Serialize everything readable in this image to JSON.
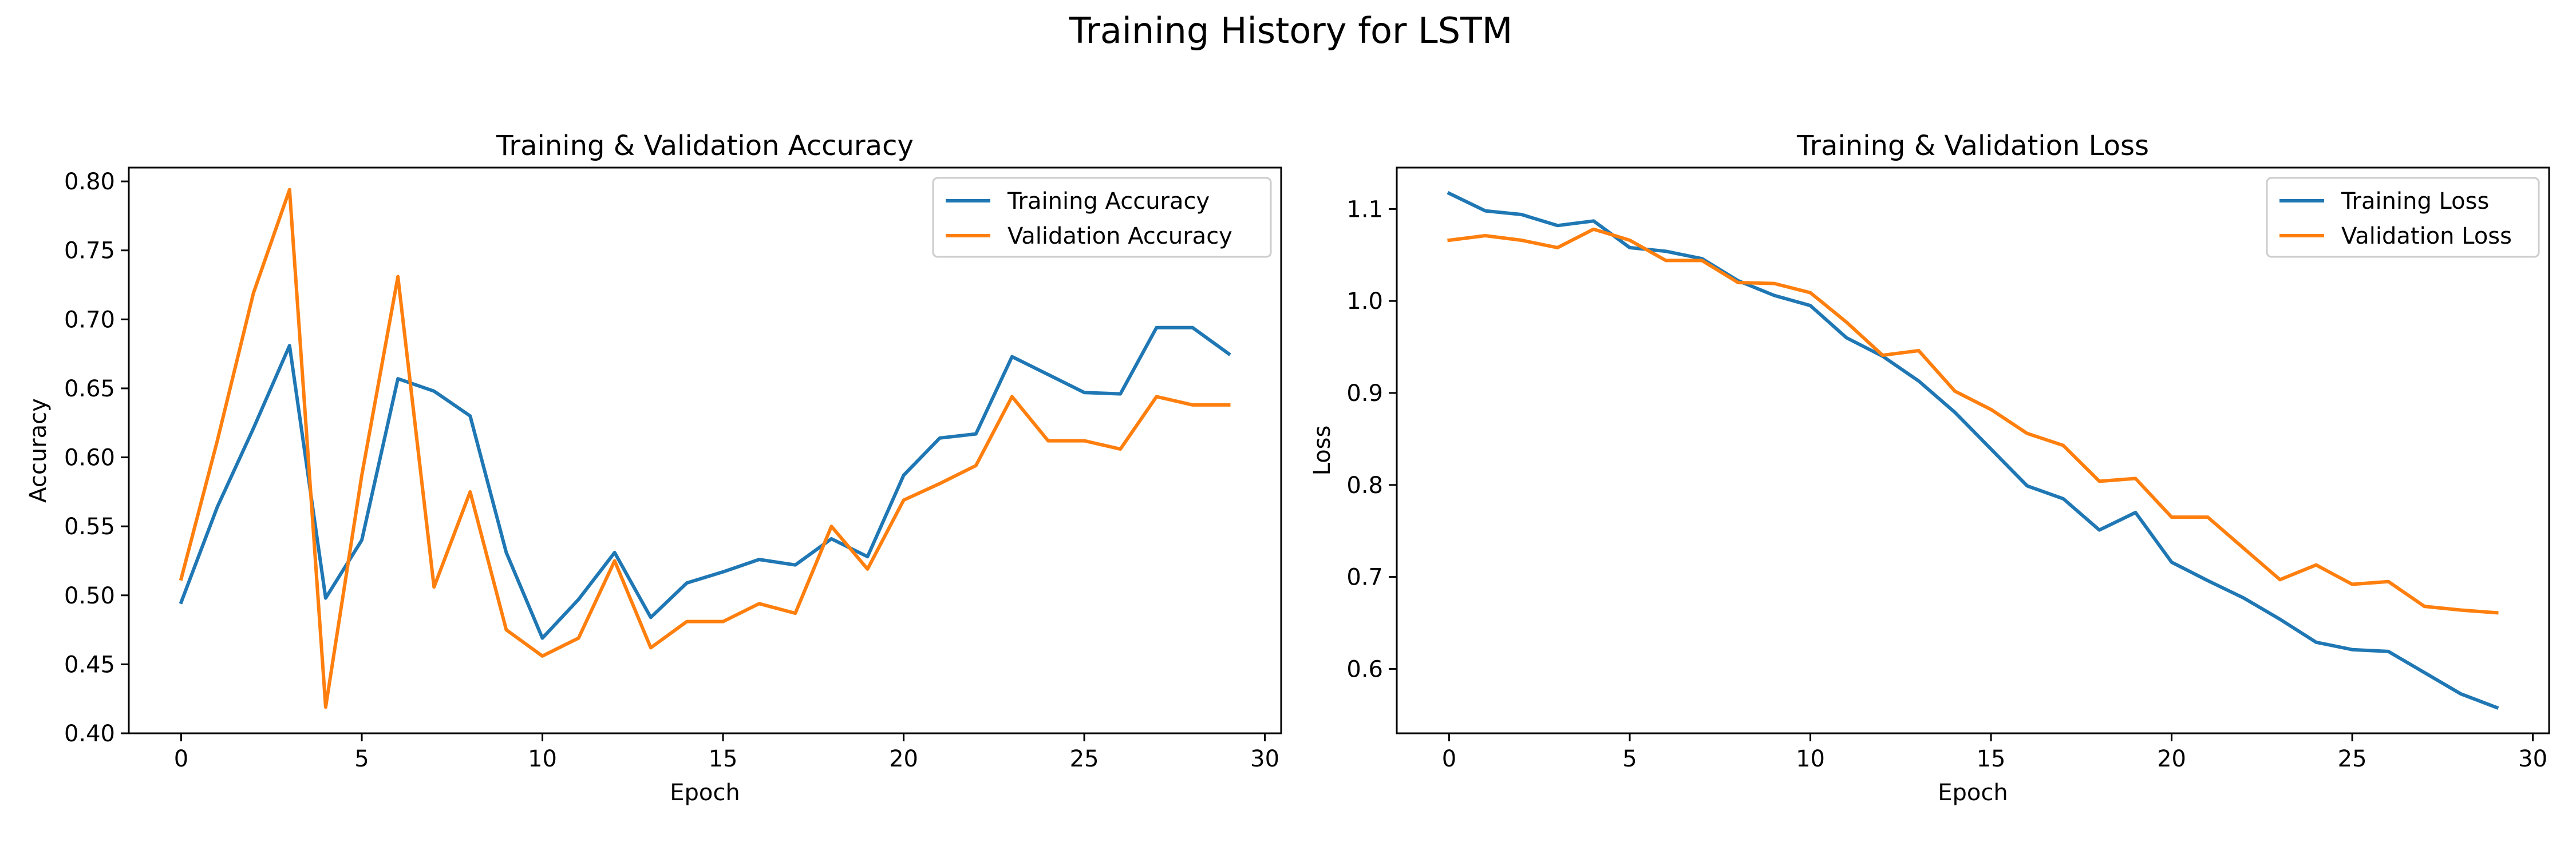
{
  "figure": {
    "suptitle": "Training History for LSTM"
  },
  "chart_data": [
    {
      "type": "line",
      "title": "Training & Validation Accuracy",
      "xlabel": "Epoch",
      "ylabel": "Accuracy",
      "xlim": [
        -1.45,
        30.45
      ],
      "ylim": [
        0.4,
        0.81
      ],
      "xticks": [
        0,
        5,
        10,
        15,
        20,
        25,
        30
      ],
      "xtick_labels": [
        "0",
        "5",
        "10",
        "15",
        "20",
        "25",
        "30"
      ],
      "yticks": [
        0.4,
        0.45,
        0.5,
        0.55,
        0.6,
        0.65,
        0.7,
        0.75,
        0.8
      ],
      "ytick_labels": [
        "0.40",
        "0.45",
        "0.50",
        "0.55",
        "0.60",
        "0.65",
        "0.70",
        "0.75",
        "0.80"
      ],
      "grid": false,
      "legend": "upper right",
      "x": [
        0,
        1,
        2,
        3,
        4,
        5,
        6,
        7,
        8,
        9,
        10,
        11,
        12,
        13,
        14,
        15,
        16,
        17,
        18,
        19,
        20,
        21,
        22,
        23,
        24,
        25,
        26,
        27,
        28,
        29
      ],
      "series": [
        {
          "name": "Training Accuracy",
          "color": "#1f77b4",
          "values": [
            0.495,
            0.564,
            0.621,
            0.681,
            0.498,
            0.54,
            0.657,
            0.648,
            0.63,
            0.531,
            0.469,
            0.497,
            0.531,
            0.484,
            0.509,
            0.517,
            0.526,
            0.522,
            0.541,
            0.528,
            0.587,
            0.614,
            0.617,
            0.673,
            0.66,
            0.647,
            0.646,
            0.694,
            0.694,
            0.675
          ]
        },
        {
          "name": "Validation Accuracy",
          "color": "#ff7f0e",
          "values": [
            0.512,
            0.612,
            0.719,
            0.794,
            0.419,
            0.587,
            0.731,
            0.506,
            0.575,
            0.475,
            0.456,
            0.469,
            0.525,
            0.462,
            0.481,
            0.481,
            0.494,
            0.487,
            0.55,
            0.519,
            0.569,
            0.581,
            0.594,
            0.644,
            0.612,
            0.612,
            0.606,
            0.644,
            0.638,
            0.638
          ]
        }
      ]
    },
    {
      "type": "line",
      "title": "Training & Validation Loss",
      "xlabel": "Epoch",
      "ylabel": "Loss",
      "xlim": [
        -1.45,
        30.45
      ],
      "ylim": [
        0.53,
        1.145
      ],
      "xticks": [
        0,
        5,
        10,
        15,
        20,
        25,
        30
      ],
      "xtick_labels": [
        "0",
        "5",
        "10",
        "15",
        "20",
        "25",
        "30"
      ],
      "yticks": [
        0.6,
        0.7,
        0.8,
        0.9,
        1.0,
        1.1
      ],
      "ytick_labels": [
        "0.6",
        "0.7",
        "0.8",
        "0.9",
        "1.0",
        "1.1"
      ],
      "grid": false,
      "legend": "upper right",
      "x": [
        0,
        1,
        2,
        3,
        4,
        5,
        6,
        7,
        8,
        9,
        10,
        11,
        12,
        13,
        14,
        15,
        16,
        17,
        18,
        19,
        20,
        21,
        22,
        23,
        24,
        25,
        26,
        27,
        28,
        29
      ],
      "series": [
        {
          "name": "Training Loss",
          "color": "#1f77b4",
          "values": [
            1.117,
            1.098,
            1.094,
            1.082,
            1.087,
            1.058,
            1.054,
            1.046,
            1.022,
            1.006,
            0.995,
            0.96,
            0.94,
            0.913,
            0.879,
            0.839,
            0.799,
            0.785,
            0.751,
            0.77,
            0.716,
            0.696,
            0.677,
            0.654,
            0.629,
            0.621,
            0.619,
            0.596,
            0.573,
            0.558
          ]
        },
        {
          "name": "Validation Loss",
          "color": "#ff7f0e",
          "values": [
            1.066,
            1.071,
            1.066,
            1.058,
            1.078,
            1.066,
            1.044,
            1.044,
            1.02,
            1.019,
            1.009,
            0.977,
            0.941,
            0.946,
            0.902,
            0.882,
            0.856,
            0.843,
            0.804,
            0.807,
            0.765,
            0.765,
            0.731,
            0.697,
            0.713,
            0.692,
            0.695,
            0.668,
            0.664,
            0.661
          ]
        }
      ]
    }
  ]
}
